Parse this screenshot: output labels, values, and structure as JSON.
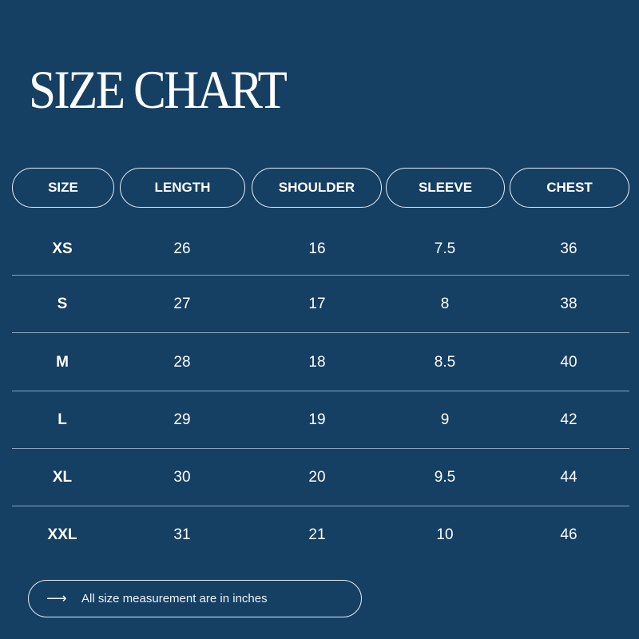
{
  "title": "SIZE CHART",
  "colors": {
    "background": "#153f63",
    "text": "#ffffff",
    "divider": "#8aa4bd"
  },
  "headers": [
    "SIZE",
    "LENGTH",
    "SHOULDER",
    "SLEEVE",
    "CHEST"
  ],
  "rows": [
    [
      "XS",
      "26",
      "16",
      "7.5",
      "36"
    ],
    [
      "S",
      "27",
      "17",
      "8",
      "38"
    ],
    [
      "M",
      "28",
      "18",
      "8.5",
      "40"
    ],
    [
      "L",
      "29",
      "19",
      "9",
      "42"
    ],
    [
      "XL",
      "30",
      "20",
      "9.5",
      "44"
    ],
    [
      "XXL",
      "31",
      "21",
      "10",
      "46"
    ]
  ],
  "footer": {
    "icon": "arrow-right-icon",
    "arrow": "⟶",
    "note": "All size measurement are in inches"
  }
}
